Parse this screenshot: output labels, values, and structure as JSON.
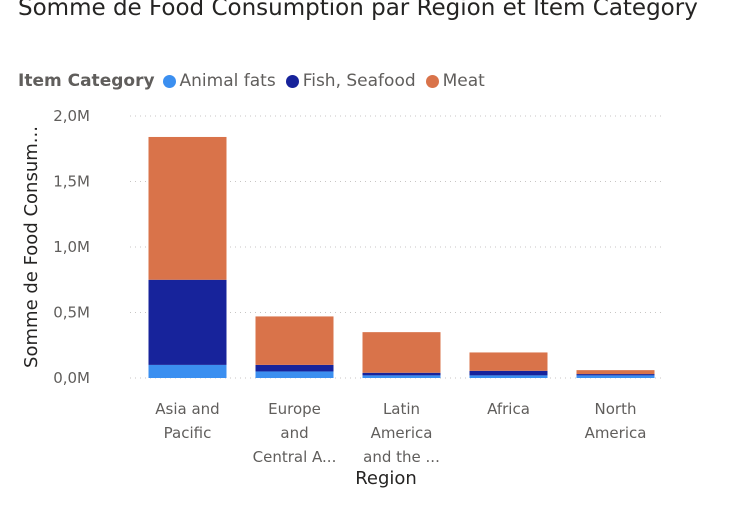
{
  "chart_data": {
    "type": "bar",
    "stacked": true,
    "title": "Somme de Food Consumption par Region et Item Category",
    "xlabel": "Region",
    "ylabel": "Somme de Food Consum...",
    "legend_title": "Item Category",
    "legend_position": "top-left",
    "grid": true,
    "ylim": [
      0,
      2000000
    ],
    "yticks": [
      {
        "value": 0,
        "label": "0,0M"
      },
      {
        "value": 500000,
        "label": "0,5M"
      },
      {
        "value": 1000000,
        "label": "1,0M"
      },
      {
        "value": 1500000,
        "label": "1,5M"
      },
      {
        "value": 2000000,
        "label": "2,0M"
      }
    ],
    "categories": [
      [
        "Asia and",
        "Pacific"
      ],
      [
        "Europe",
        "and",
        "Central A..."
      ],
      [
        "Latin",
        "America",
        "and the ..."
      ],
      [
        "Africa"
      ],
      [
        "North",
        "America"
      ]
    ],
    "series": [
      {
        "name": "Animal fats",
        "color": "#3b8ff0",
        "values": [
          100000,
          50000,
          20000,
          20000,
          20000
        ]
      },
      {
        "name": "Fish, Seafood",
        "color": "#17239b",
        "values": [
          650000,
          50000,
          20000,
          35000,
          10000
        ]
      },
      {
        "name": "Meat",
        "color": "#d9734a",
        "values": [
          1090000,
          370000,
          310000,
          140000,
          30000
        ]
      }
    ]
  }
}
